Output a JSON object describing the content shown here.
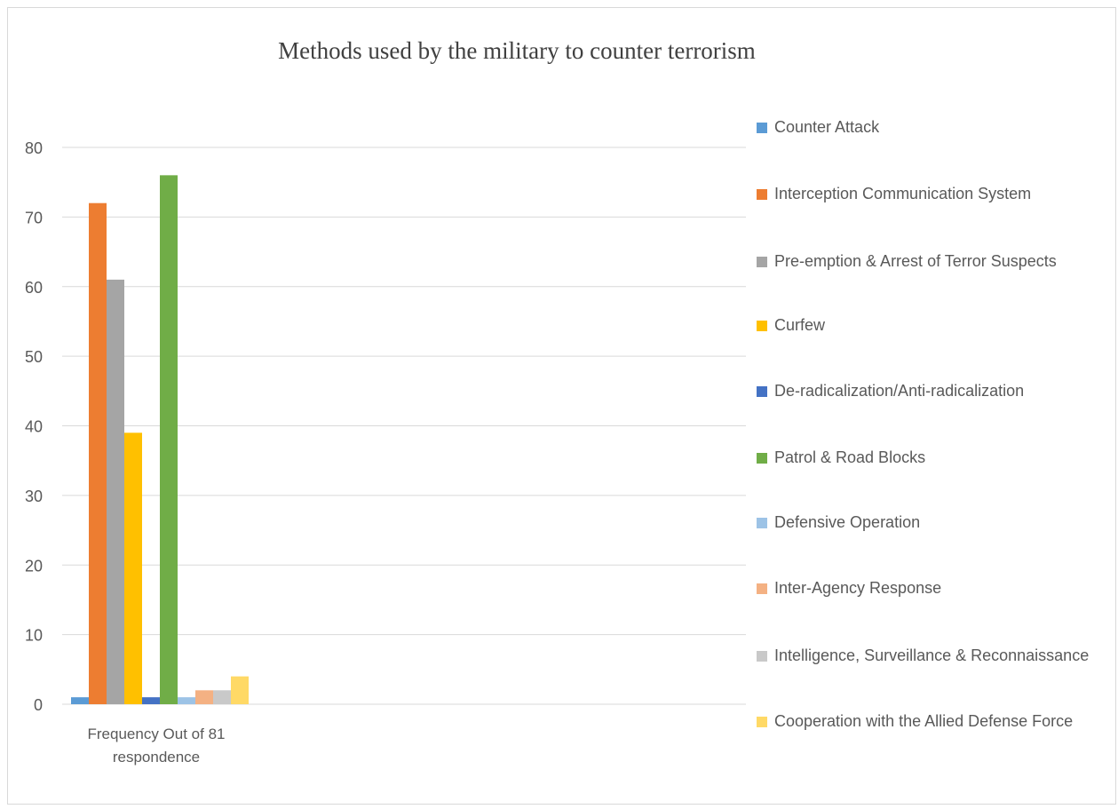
{
  "chart_data": {
    "type": "bar",
    "title": "Methods used by the military to counter terrorism",
    "categories": [
      "Frequency Out of 81 respondence"
    ],
    "ylim": [
      0,
      80
    ],
    "yticks": [
      0,
      10,
      20,
      30,
      40,
      50,
      60,
      70,
      80
    ],
    "grid": true,
    "legend_position": "right",
    "series": [
      {
        "name": "Counter Attack",
        "values": [
          1
        ],
        "color": "#5b9bd5"
      },
      {
        "name": "Interception Communication System",
        "values": [
          72
        ],
        "color": "#ed7d31"
      },
      {
        "name": "Pre-emption & Arrest of Terror Suspects",
        "values": [
          61
        ],
        "color": "#a5a5a5"
      },
      {
        "name": "Curfew",
        "values": [
          39
        ],
        "color": "#ffc000"
      },
      {
        "name": "De-radicalization/Anti-radicalization",
        "values": [
          1
        ],
        "color": "#4472c4"
      },
      {
        "name": "Patrol & Road Blocks",
        "values": [
          76
        ],
        "color": "#70ad47"
      },
      {
        "name": "Defensive Operation",
        "values": [
          1
        ],
        "color": "#9dc3e6"
      },
      {
        "name": "Inter-Agency Response",
        "values": [
          2
        ],
        "color": "#f4b183"
      },
      {
        "name": "Intelligence, Surveillance & Reconnaissance",
        "values": [
          2
        ],
        "color": "#c9c9c9"
      },
      {
        "name": "Cooperation with the Allied Defense Force",
        "values": [
          4
        ],
        "color": "#ffd966"
      }
    ]
  }
}
